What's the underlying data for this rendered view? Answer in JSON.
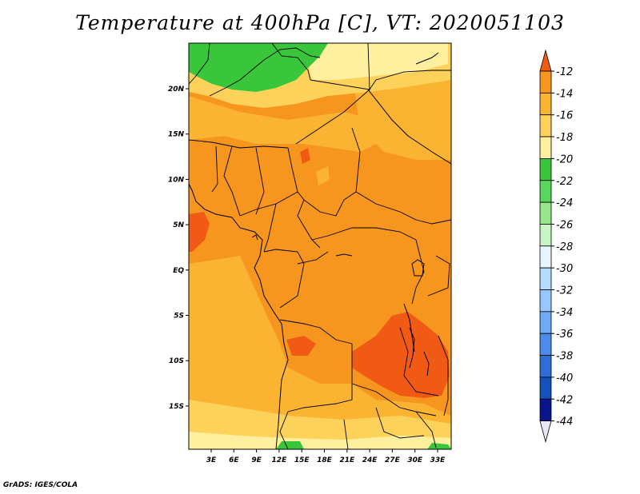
{
  "title": "Temperature at 400hPa [C], VT: 2020051103",
  "credit": "GrADS: IGES/COLA",
  "map": {
    "lon_labels": [
      "3E",
      "6E",
      "9E",
      "12E",
      "15E",
      "18E",
      "21E",
      "24E",
      "27E",
      "30E",
      "33E"
    ],
    "lat_labels": [
      "20N",
      "15N",
      "10N",
      "5N",
      "EQ",
      "5S",
      "10S",
      "15S"
    ]
  },
  "colorbar": {
    "levels": [
      "-12",
      "-14",
      "-16",
      "-18",
      "-20",
      "-22",
      "-24",
      "-26",
      "-28",
      "-30",
      "-32",
      "-34",
      "-36",
      "-38",
      "-40",
      "-42",
      "-44"
    ],
    "colors": [
      "#f05a14",
      "#f6961e",
      "#fab432",
      "#fdd25a",
      "#fff0a0",
      "#39c63b",
      "#5ad65a",
      "#96e68c",
      "#c8f5c3",
      "#e6f5ff",
      "#b4dcff",
      "#96c8ff",
      "#6eaaf5",
      "#4b8ceb",
      "#2d6ed7",
      "#1450be",
      "#0a148c",
      "#e6e6f5"
    ],
    "over_color": "#f05a14",
    "under_color": "#e6e6f5"
  },
  "palette": {
    "ocean_base": "#fab432",
    "land_base": "#f6961e",
    "warm_patch": "#f05a14",
    "cool_band": "#fdd25a",
    "pale_band": "#fff0a0",
    "green_field": "#39c63b",
    "border": "#000000"
  }
}
